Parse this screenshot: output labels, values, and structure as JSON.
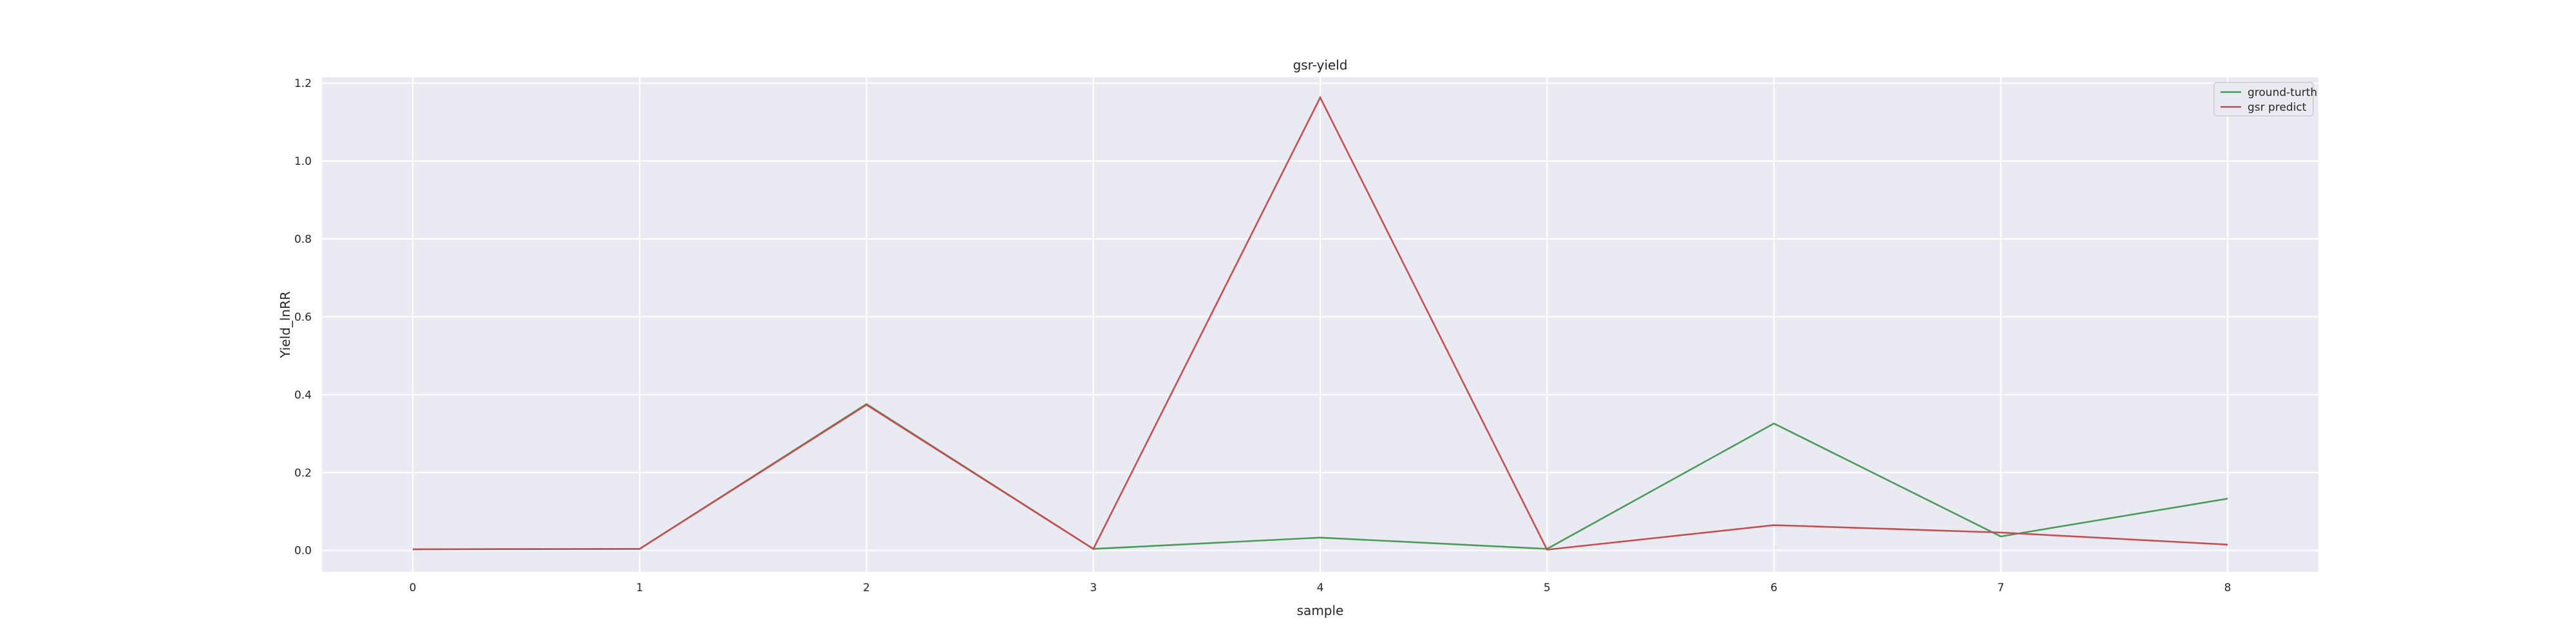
{
  "chart_data": {
    "type": "line",
    "title": "gsr-yield",
    "xlabel": "sample",
    "ylabel": "Yield_lnRR",
    "x": [
      0,
      1,
      2,
      3,
      4,
      5,
      6,
      7,
      8
    ],
    "xlim": [
      -0.4,
      8.4
    ],
    "ylim": [
      -0.055,
      1.215
    ],
    "xticks": [
      "0",
      "1",
      "2",
      "3",
      "4",
      "5",
      "6",
      "7",
      "8"
    ],
    "yticks": [
      "0.0",
      "0.2",
      "0.4",
      "0.6",
      "0.8",
      "1.0",
      "1.2"
    ],
    "grid": true,
    "legend_position": "top-right",
    "series": [
      {
        "name": "ground-turth",
        "color": "#4c9a5a",
        "values": [
          0.003,
          0.004,
          0.376,
          0.004,
          0.033,
          0.004,
          0.326,
          0.036,
          0.133
        ]
      },
      {
        "name": "gsr predict",
        "color": "#c44e52",
        "values": [
          0.003,
          0.004,
          0.374,
          0.004,
          1.163,
          0.002,
          0.065,
          0.046,
          0.015
        ]
      }
    ],
    "colors": {
      "plot_background": "#eaeaf2",
      "grid": "#ffffff",
      "page_background": "#ffffff"
    }
  }
}
